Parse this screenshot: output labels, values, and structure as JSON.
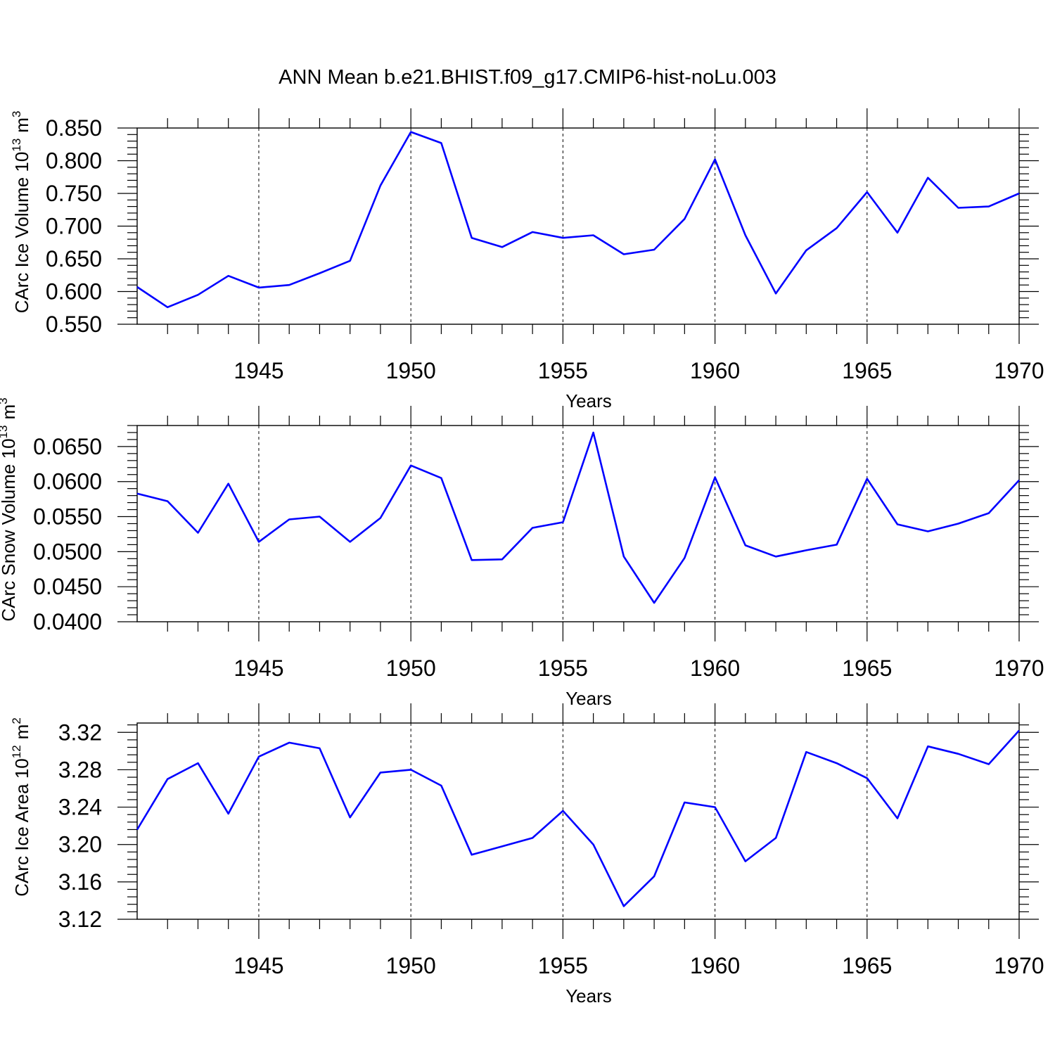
{
  "figure_title": "ANN Mean b.e21.BHIST.f09_g17.CMIP6-hist-noLu.003",
  "colors": {
    "line": "#0000ff",
    "axis": "#000000"
  },
  "chart_data": [
    {
      "type": "line",
      "title": "ANN Mean b.e21.BHIST.f09_g17.CMIP6-hist-noLu.003",
      "xlabel": "Years",
      "ylabel": "CArc Ice Volume 10",
      "ylabel_exp": "13",
      "ylabel_unit": "m",
      "ylabel_unit_exp": "3",
      "xlim": [
        1941,
        1970
      ],
      "ylim": [
        0.55,
        0.85
      ],
      "grid": "vertical dashed at major x ticks",
      "xticks": [
        1945,
        1950,
        1955,
        1960,
        1965,
        1970
      ],
      "xtick_labels": [
        "1945",
        "1950",
        "1955",
        "1960",
        "1965",
        "1970"
      ],
      "yticks": [
        0.55,
        0.6,
        0.65,
        0.7,
        0.75,
        0.8,
        0.85
      ],
      "ytick_labels": [
        "0.550",
        "0.600",
        "0.650",
        "0.700",
        "0.750",
        "0.800",
        "0.850"
      ],
      "yminor_step": 0.01,
      "x": [
        1941,
        1942,
        1943,
        1944,
        1945,
        1946,
        1947,
        1948,
        1949,
        1950,
        1951,
        1952,
        1953,
        1954,
        1955,
        1956,
        1957,
        1958,
        1959,
        1960,
        1961,
        1962,
        1963,
        1964,
        1965,
        1966,
        1967,
        1968,
        1969,
        1970
      ],
      "series": [
        {
          "name": "CArc Ice Volume",
          "values": [
            0.607,
            0.576,
            0.595,
            0.624,
            0.606,
            0.61,
            0.628,
            0.647,
            0.762,
            0.844,
            0.827,
            0.682,
            0.668,
            0.691,
            0.682,
            0.686,
            0.657,
            0.664,
            0.711,
            0.802,
            0.686,
            0.597,
            0.663,
            0.697,
            0.752,
            0.69,
            0.774,
            0.728,
            0.73,
            0.75
          ]
        }
      ]
    },
    {
      "type": "line",
      "xlabel": "Years",
      "ylabel": "CArc Snow Volume 10",
      "ylabel_exp": "13",
      "ylabel_unit": "m",
      "ylabel_unit_exp": "3",
      "xlim": [
        1941,
        1970
      ],
      "ylim": [
        0.04,
        0.068
      ],
      "grid": "vertical dashed at major x ticks",
      "xticks": [
        1945,
        1950,
        1955,
        1960,
        1965,
        1970
      ],
      "xtick_labels": [
        "1945",
        "1950",
        "1955",
        "1960",
        "1965",
        "1970"
      ],
      "yticks": [
        0.04,
        0.045,
        0.05,
        0.055,
        0.06,
        0.065
      ],
      "ytick_labels": [
        "0.0400",
        "0.0450",
        "0.0500",
        "0.0550",
        "0.0600",
        "0.0650"
      ],
      "yminor_step": 0.001,
      "x": [
        1941,
        1942,
        1943,
        1944,
        1945,
        1946,
        1947,
        1948,
        1949,
        1950,
        1951,
        1952,
        1953,
        1954,
        1955,
        1956,
        1957,
        1958,
        1959,
        1960,
        1961,
        1962,
        1963,
        1964,
        1965,
        1966,
        1967,
        1968,
        1969,
        1970
      ],
      "series": [
        {
          "name": "CArc Snow Volume",
          "values": [
            0.0583,
            0.0572,
            0.0527,
            0.0597,
            0.0514,
            0.0546,
            0.055,
            0.0514,
            0.0548,
            0.0623,
            0.0605,
            0.0488,
            0.0489,
            0.0534,
            0.0542,
            0.067,
            0.0493,
            0.0427,
            0.0491,
            0.0606,
            0.0509,
            0.0493,
            0.0502,
            0.051,
            0.0604,
            0.0539,
            0.0529,
            0.054,
            0.0555,
            0.0602
          ]
        }
      ]
    },
    {
      "type": "line",
      "xlabel": "Years",
      "ylabel": "CArc Ice Area 10",
      "ylabel_exp": "12",
      "ylabel_unit": "m",
      "ylabel_unit_exp": "2",
      "xlim": [
        1941,
        1970
      ],
      "ylim": [
        3.12,
        3.33
      ],
      "grid": "vertical dashed at major x ticks",
      "xticks": [
        1945,
        1950,
        1955,
        1960,
        1965,
        1970
      ],
      "xtick_labels": [
        "1945",
        "1950",
        "1955",
        "1960",
        "1965",
        "1970"
      ],
      "yticks": [
        3.12,
        3.16,
        3.2,
        3.24,
        3.28,
        3.32
      ],
      "ytick_labels": [
        "3.12",
        "3.16",
        "3.20",
        "3.24",
        "3.28",
        "3.32"
      ],
      "yminor_step": 0.008,
      "x": [
        1941,
        1942,
        1943,
        1944,
        1945,
        1946,
        1947,
        1948,
        1949,
        1950,
        1951,
        1952,
        1953,
        1954,
        1955,
        1956,
        1957,
        1958,
        1959,
        1960,
        1961,
        1962,
        1963,
        1964,
        1965,
        1966,
        1967,
        1968,
        1969,
        1970
      ],
      "series": [
        {
          "name": "CArc Ice Area",
          "values": [
            3.216,
            3.27,
            3.287,
            3.233,
            3.294,
            3.309,
            3.303,
            3.229,
            3.277,
            3.28,
            3.263,
            3.189,
            3.198,
            3.207,
            3.236,
            3.2,
            3.134,
            3.166,
            3.245,
            3.24,
            3.182,
            3.207,
            3.299,
            3.287,
            3.271,
            3.228,
            3.305,
            3.297,
            3.286,
            3.322
          ]
        }
      ]
    }
  ]
}
